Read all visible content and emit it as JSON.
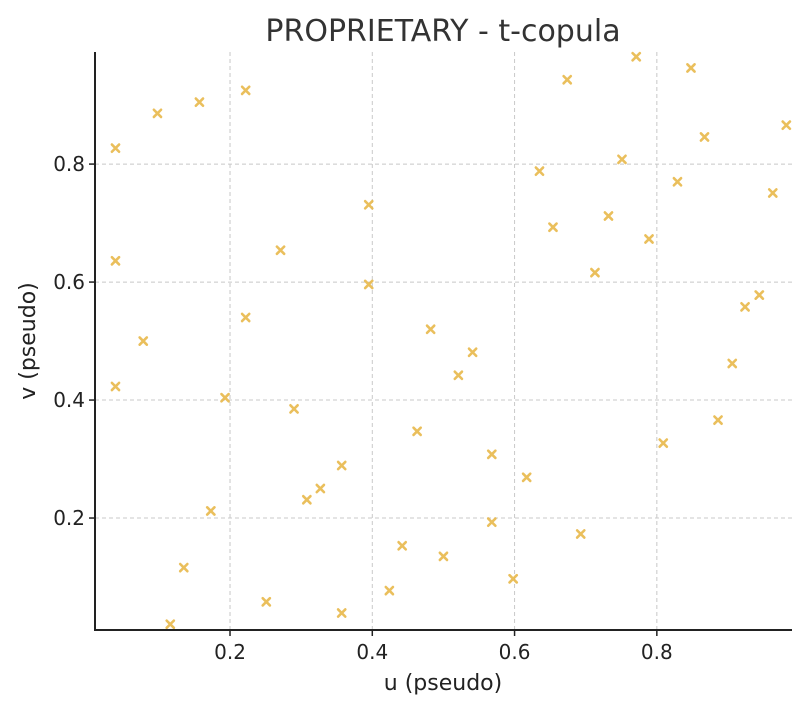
{
  "chart_data": {
    "type": "scatter",
    "title": "PROPRIETARY - t-copula",
    "xlabel": "u (pseudo)",
    "ylabel": "v (pseudo)",
    "xlim": [
      0.0102,
      0.99
    ],
    "ylim": [
      0.0102,
      0.99
    ],
    "xticks": [
      0.2,
      0.4,
      0.6,
      0.8
    ],
    "yticks": [
      0.2,
      0.4,
      0.6,
      0.8
    ],
    "xtick_labels": [
      "0.2",
      "0.4",
      "0.6",
      "0.8"
    ],
    "ytick_labels": [
      "0.2",
      "0.4",
      "0.6",
      "0.8"
    ],
    "grid": true,
    "marker": "x",
    "marker_color": "#e8b84a",
    "points": [
      {
        "x": 0.039,
        "y": 0.827
      },
      {
        "x": 0.098,
        "y": 0.886
      },
      {
        "x": 0.157,
        "y": 0.905
      },
      {
        "x": 0.222,
        "y": 0.925
      },
      {
        "x": 0.039,
        "y": 0.636
      },
      {
        "x": 0.271,
        "y": 0.654
      },
      {
        "x": 0.395,
        "y": 0.731
      },
      {
        "x": 0.395,
        "y": 0.596
      },
      {
        "x": 0.222,
        "y": 0.54
      },
      {
        "x": 0.078,
        "y": 0.5
      },
      {
        "x": 0.039,
        "y": 0.423
      },
      {
        "x": 0.193,
        "y": 0.404
      },
      {
        "x": 0.29,
        "y": 0.385
      },
      {
        "x": 0.463,
        "y": 0.347
      },
      {
        "x": 0.482,
        "y": 0.52
      },
      {
        "x": 0.541,
        "y": 0.481
      },
      {
        "x": 0.521,
        "y": 0.442
      },
      {
        "x": 0.568,
        "y": 0.308
      },
      {
        "x": 0.357,
        "y": 0.289
      },
      {
        "x": 0.327,
        "y": 0.25
      },
      {
        "x": 0.308,
        "y": 0.231
      },
      {
        "x": 0.173,
        "y": 0.212
      },
      {
        "x": 0.568,
        "y": 0.193
      },
      {
        "x": 0.617,
        "y": 0.269
      },
      {
        "x": 0.442,
        "y": 0.153
      },
      {
        "x": 0.5,
        "y": 0.135
      },
      {
        "x": 0.135,
        "y": 0.116
      },
      {
        "x": 0.598,
        "y": 0.097
      },
      {
        "x": 0.424,
        "y": 0.077
      },
      {
        "x": 0.251,
        "y": 0.058
      },
      {
        "x": 0.357,
        "y": 0.039
      },
      {
        "x": 0.116,
        "y": 0.02
      },
      {
        "x": 0.693,
        "y": 0.173
      },
      {
        "x": 0.809,
        "y": 0.327
      },
      {
        "x": 0.886,
        "y": 0.366
      },
      {
        "x": 0.906,
        "y": 0.462
      },
      {
        "x": 0.924,
        "y": 0.558
      },
      {
        "x": 0.944,
        "y": 0.578
      },
      {
        "x": 0.713,
        "y": 0.616
      },
      {
        "x": 0.654,
        "y": 0.693
      },
      {
        "x": 0.732,
        "y": 0.712
      },
      {
        "x": 0.789,
        "y": 0.673
      },
      {
        "x": 0.635,
        "y": 0.788
      },
      {
        "x": 0.751,
        "y": 0.808
      },
      {
        "x": 0.829,
        "y": 0.77
      },
      {
        "x": 0.867,
        "y": 0.846
      },
      {
        "x": 0.963,
        "y": 0.751
      },
      {
        "x": 0.982,
        "y": 0.866
      },
      {
        "x": 0.674,
        "y": 0.943
      },
      {
        "x": 0.771,
        "y": 0.982
      },
      {
        "x": 0.848,
        "y": 0.963
      }
    ]
  }
}
